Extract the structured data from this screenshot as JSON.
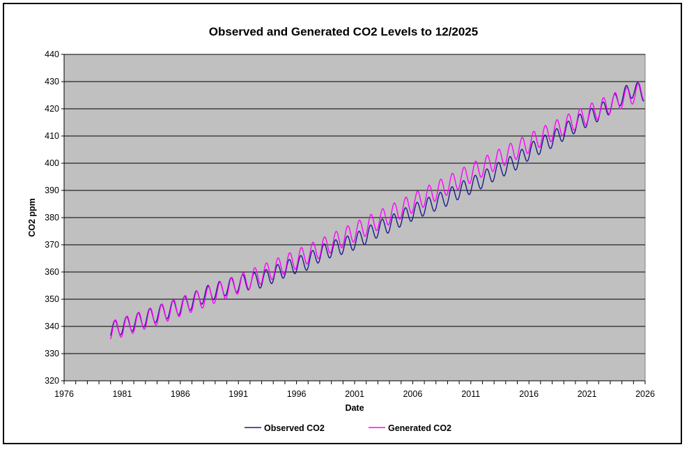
{
  "chart_data": {
    "type": "line",
    "title": "Observed and Generated CO2 Levels to 12/2025",
    "xlabel": "Date",
    "ylabel": "CO2 ppm",
    "xlim": [
      1976,
      2026
    ],
    "ylim": [
      320,
      440
    ],
    "x_ticks": [
      "1976",
      "1981",
      "1986",
      "1991",
      "1996",
      "2001",
      "2006",
      "2011",
      "2016",
      "2021",
      "2026"
    ],
    "y_ticks": [
      "320",
      "330",
      "340",
      "350",
      "360",
      "370",
      "380",
      "390",
      "400",
      "410",
      "420",
      "430",
      "440"
    ],
    "grid": true,
    "legend_position": "bottom",
    "plot_background": "#c0c0c0",
    "series": [
      {
        "name": "Observed CO2",
        "color": "#1a1a8c",
        "x": [
          1980.0,
          1981.0,
          1982.0,
          1983.0,
          1984.0,
          1985.0,
          1986.0,
          1987.0,
          1988.0,
          1989.0,
          1990.0,
          1991.0,
          1992.0,
          1993.0,
          1994.0,
          1995.0,
          1996.0,
          1997.0,
          1998.0,
          1999.0,
          2000.0,
          2001.0,
          2002.0,
          2003.0,
          2004.0,
          2005.0,
          2006.0,
          2007.0,
          2008.0,
          2009.0,
          2010.0,
          2011.0,
          2012.0,
          2013.0,
          2014.0,
          2015.0,
          2016.0,
          2017.0,
          2018.0,
          2019.0,
          2020.0,
          2021.0,
          2022.0,
          2023.0,
          2024.0,
          2025.0,
          2025.9
        ],
        "y": [
          338.7,
          340.1,
          341.4,
          343.0,
          344.6,
          346.0,
          347.4,
          349.2,
          351.5,
          353.0,
          354.4,
          355.7,
          356.5,
          357.2,
          359.0,
          361.0,
          362.6,
          363.8,
          366.7,
          368.4,
          369.6,
          371.2,
          373.3,
          375.8,
          377.5,
          379.8,
          381.9,
          383.8,
          385.6,
          387.4,
          389.9,
          391.7,
          393.9,
          396.5,
          398.6,
          400.8,
          404.2,
          406.5,
          408.7,
          411.4,
          414.2,
          416.4,
          418.5,
          421.1,
          424.6,
          427.2,
          425.8
        ]
      },
      {
        "name": "Generated CO2",
        "color": "#ff00ff",
        "x": [
          1980.0,
          1981.0,
          1982.0,
          1983.0,
          1984.0,
          1985.0,
          1986.0,
          1987.0,
          1988.0,
          1989.0,
          1990.0,
          1991.0,
          1992.0,
          1993.0,
          1994.0,
          1995.0,
          1996.0,
          1997.0,
          1998.0,
          1999.0,
          2000.0,
          2001.0,
          2002.0,
          2003.0,
          2004.0,
          2005.0,
          2006.0,
          2007.0,
          2008.0,
          2009.0,
          2010.0,
          2011.0,
          2012.0,
          2013.0,
          2014.0,
          2015.0,
          2016.0,
          2017.0,
          2018.0,
          2019.0,
          2020.0,
          2021.0,
          2022.0,
          2023.0,
          2024.0,
          2025.0,
          2025.9
        ],
        "y": [
          338.3,
          339.7,
          341.1,
          342.6,
          344.1,
          345.6,
          347.2,
          348.8,
          350.4,
          352.1,
          353.8,
          355.5,
          357.3,
          359.1,
          360.9,
          362.8,
          364.7,
          366.6,
          368.6,
          370.6,
          372.6,
          374.7,
          376.8,
          378.9,
          381.0,
          383.1,
          385.3,
          387.5,
          389.7,
          391.9,
          394.1,
          396.3,
          398.5,
          400.7,
          402.9,
          405.1,
          407.3,
          409.5,
          411.6,
          413.7,
          415.8,
          417.8,
          419.8,
          421.7,
          423.6,
          425.4,
          426.8
        ]
      }
    ]
  }
}
